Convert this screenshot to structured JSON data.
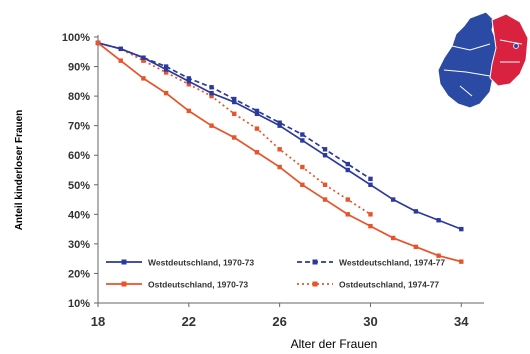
{
  "chart_data": {
    "type": "line",
    "title": "",
    "xlabel": "Alter der Frauen",
    "ylabel": "Anteil kinderloser Frauen",
    "xlim": [
      18,
      35
    ],
    "ylim": [
      10,
      100
    ],
    "x_ticks": [
      18,
      22,
      26,
      30,
      34
    ],
    "y_ticks": [
      "10%",
      "20%",
      "30%",
      "40%",
      "50%",
      "60%",
      "70%",
      "80%",
      "90%",
      "100%"
    ],
    "grid": false,
    "legend_position": "bottom-inside",
    "series": [
      {
        "name": "Westdeutschland, 1970-73",
        "color": "#2b3a9c",
        "style": "solid",
        "marker": "square",
        "x": [
          18,
          19,
          20,
          21,
          22,
          23,
          24,
          25,
          26,
          27,
          28,
          29,
          30,
          31,
          32,
          33,
          34
        ],
        "y": [
          98,
          96,
          93,
          89,
          85,
          81,
          78,
          74,
          70,
          65,
          60,
          55,
          50,
          45,
          41,
          38,
          35
        ]
      },
      {
        "name": "Westdeutschland, 1974-77",
        "color": "#2b3a9c",
        "style": "dashed",
        "marker": "square",
        "x": [
          18,
          19,
          20,
          21,
          22,
          23,
          24,
          25,
          26,
          27,
          28,
          29,
          30
        ],
        "y": [
          98,
          96,
          93,
          90,
          86,
          83,
          79,
          75,
          71,
          67,
          62,
          57,
          52
        ]
      },
      {
        "name": "Ostdeutschland, 1970-73",
        "color": "#e8532a",
        "style": "solid",
        "marker": "square",
        "x": [
          18,
          19,
          20,
          21,
          22,
          23,
          24,
          25,
          26,
          27,
          28,
          29,
          30,
          31,
          32,
          33,
          34
        ],
        "y": [
          98,
          92,
          86,
          81,
          75,
          70,
          66,
          61,
          56,
          50,
          45,
          40,
          36,
          32,
          29,
          26,
          24
        ]
      },
      {
        "name": "Ostdeutschland, 1974-77",
        "color": "#e8532a",
        "style": "dotted",
        "marker": "square",
        "x": [
          18,
          19,
          20,
          21,
          22,
          23,
          24,
          25,
          26,
          27,
          28,
          29,
          30
        ],
        "y": [
          98,
          96,
          92,
          88,
          84,
          80,
          74,
          69,
          62,
          56,
          50,
          45,
          40
        ]
      }
    ]
  },
  "map": {
    "west_color": "#2b4aa3",
    "east_color": "#d9223f"
  }
}
